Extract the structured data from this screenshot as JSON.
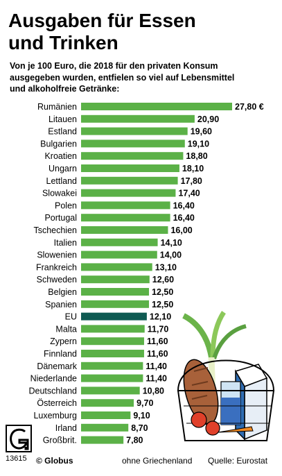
{
  "header": {
    "title_line1": "Ausgaben für Essen",
    "title_line2": "und Trinken",
    "subtitle_line1": "Von je 100 Euro, die 2018 für den privaten Konsum",
    "subtitle_line2": "ausgegeben wurden, entfielen so viel auf Lebensmittel",
    "subtitle_line3": "und alkoholfreie Getränke:"
  },
  "footer": {
    "logo_number": "13615",
    "brand": "© Globus",
    "note": "ohne Griechenland",
    "source": "Quelle: Eurostat"
  },
  "colors": {
    "bar": "#5bb147",
    "highlight": "#0f5a52"
  },
  "icons": [
    "globus-logo-icon",
    "grocery-basket-icon"
  ],
  "chart_data": {
    "type": "bar",
    "orientation": "horizontal",
    "title": "Ausgaben für Essen und Trinken",
    "categories": [
      "Rumänien",
      "Litauen",
      "Estland",
      "Bulgarien",
      "Kroatien",
      "Ungarn",
      "Lettland",
      "Slowakei",
      "Polen",
      "Portugal",
      "Tschechien",
      "Italien",
      "Slowenien",
      "Frankreich",
      "Schweden",
      "Belgien",
      "Spanien",
      "EU",
      "Malta",
      "Zypern",
      "Finnland",
      "Dänemark",
      "Niederlande",
      "Deutschland",
      "Österreich",
      "Luxemburg",
      "Irland",
      "Großbrit."
    ],
    "values": [
      27.8,
      20.9,
      19.6,
      19.1,
      18.8,
      18.1,
      17.8,
      17.4,
      16.4,
      16.4,
      16.0,
      14.1,
      14.0,
      13.1,
      12.6,
      12.5,
      12.5,
      12.1,
      11.7,
      11.6,
      11.6,
      11.4,
      11.4,
      10.8,
      9.7,
      9.1,
      8.7,
      7.8
    ],
    "value_labels": [
      "27,80 €",
      "20,90",
      "19,60",
      "19,10",
      "18,80",
      "18,10",
      "17,80",
      "17,40",
      "16,40",
      "16,40",
      "16,00",
      "14,10",
      "14,00",
      "13,10",
      "12,60",
      "12,50",
      "12,50",
      "12,10",
      "11,70",
      "11,60",
      "11,60",
      "11,40",
      "11,40",
      "10,80",
      "9,70",
      "9,10",
      "8,70",
      "7,80"
    ],
    "highlight": "EU",
    "xlim": [
      0,
      27.8
    ],
    "grid": false,
    "legend": "none"
  }
}
